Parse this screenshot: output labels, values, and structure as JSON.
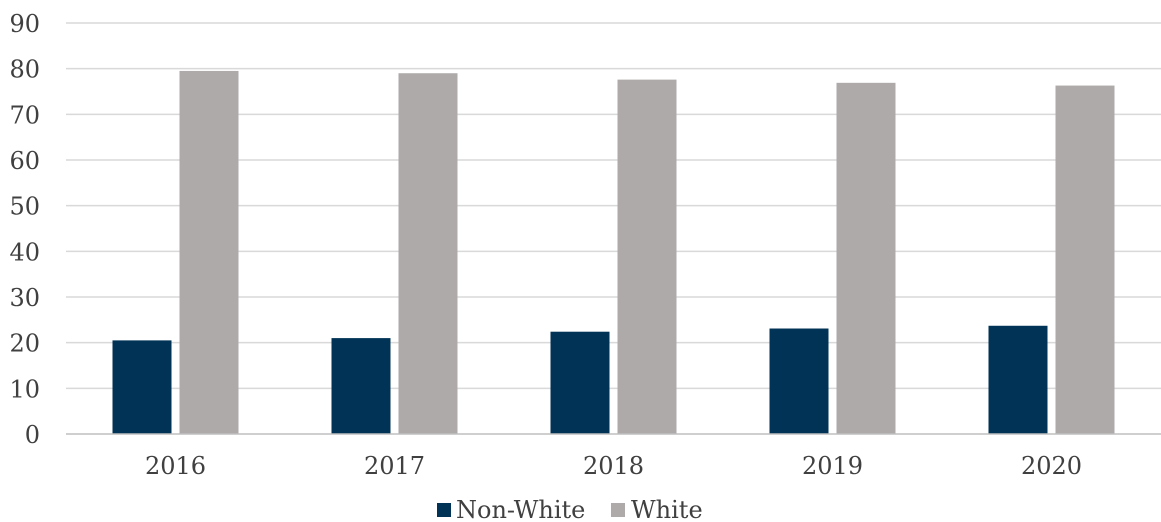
{
  "chart_data": {
    "type": "bar",
    "title": "",
    "xlabel": "",
    "ylabel": "",
    "categories": [
      "2016",
      "2017",
      "2018",
      "2019",
      "2020"
    ],
    "series": [
      {
        "name": "Non-White",
        "values": [
          20.5,
          21.0,
          22.4,
          23.1,
          23.7
        ],
        "color": "#003355"
      },
      {
        "name": "White",
        "values": [
          79.5,
          79.0,
          77.6,
          76.9,
          76.3
        ],
        "color": "#aeaaa9"
      }
    ],
    "ylim": [
      0,
      90
    ],
    "yticks": [
      0,
      10,
      20,
      30,
      40,
      50,
      60,
      70,
      80,
      90
    ],
    "grid": true,
    "legend": "bottom-center"
  }
}
